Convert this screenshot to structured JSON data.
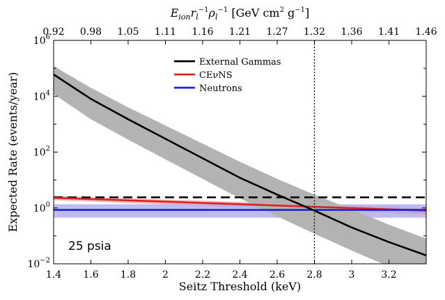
{
  "chart_data": {
    "type": "line",
    "xlabel": "Seitz Threshold (keV)",
    "ylabel": "Expected Rate (events/year)",
    "top_xlabel": "E_ion r_l^-1 ρ_l^-1 [GeV cm^2 g^-1]",
    "xlim": [
      1.4,
      3.4
    ],
    "ylim": [
      0.01,
      1000000
    ],
    "yscale": "log",
    "x_ticks": [
      "1.4",
      "1.6",
      "1.8",
      "2",
      "2.2",
      "2.4",
      "2.6",
      "2.8",
      "3",
      "3.2"
    ],
    "x_tick_values": [
      1.4,
      1.6,
      1.8,
      2.0,
      2.2,
      2.4,
      2.6,
      2.8,
      3.0,
      3.2
    ],
    "y_ticks": [
      {
        "value": 0.01,
        "base": "10",
        "exp": "−2"
      },
      {
        "value": 1,
        "base": "10",
        "exp": "0"
      },
      {
        "value": 100,
        "base": "10",
        "exp": "2"
      },
      {
        "value": 10000,
        "base": "10",
        "exp": "4"
      },
      {
        "value": 1000000,
        "base": "10",
        "exp": "6"
      }
    ],
    "top_ticks": [
      "0.92",
      "0.98",
      "1.05",
      "1.11",
      "1.16",
      "1.21",
      "1.27",
      "1.32",
      "1.36",
      "1.41",
      "1.46"
    ],
    "top_tick_x": [
      1.4,
      1.6,
      1.8,
      2.0,
      2.2,
      2.4,
      2.6,
      2.8,
      3.0,
      3.2,
      3.4
    ],
    "legend": [
      {
        "name": "External Gammas",
        "color": "#000000"
      },
      {
        "name": "CEνNS",
        "color": "#dd2020"
      },
      {
        "name": "Neutrons",
        "color": "#1f1fd8"
      }
    ],
    "legend_position": "top-center",
    "annotation": "25 psia",
    "series": [
      {
        "name": "External Gammas",
        "color": "#000000",
        "band_color": "#b3b3b3",
        "x": [
          1.4,
          1.6,
          1.8,
          2.0,
          2.2,
          2.4,
          2.6,
          2.8,
          3.0,
          3.2,
          3.4
        ],
        "y": [
          60000,
          8000,
          1500,
          300,
          60,
          12,
          3,
          0.8,
          0.2,
          0.06,
          0.02
        ],
        "y_low": [
          12000,
          1500,
          280,
          55,
          11,
          2.2,
          0.5,
          0.12,
          0.03,
          0.008,
          0.0025
        ],
        "y_high": [
          120000,
          20000,
          4000,
          900,
          200,
          45,
          11,
          3,
          0.9,
          0.25,
          0.08
        ]
      },
      {
        "name": "CEνNS",
        "color": "#dd2020",
        "band_color": "#f2a0a0",
        "x": [
          1.4,
          3.4
        ],
        "y": [
          2.3,
          0.8
        ],
        "y_low": [
          1.9,
          0.6
        ],
        "y_high": [
          2.7,
          1.0
        ]
      },
      {
        "name": "Neutrons",
        "color": "#1f1fd8",
        "band_color": "#a6a6ee",
        "x": [
          1.4,
          3.4
        ],
        "y": [
          0.85,
          0.85
        ],
        "y_low": [
          0.45,
          0.45
        ],
        "y_high": [
          1.35,
          1.35
        ]
      }
    ],
    "reference_lines": {
      "horizontal_dashed_y": 2.4,
      "vertical_dotted_x": 2.8
    }
  }
}
